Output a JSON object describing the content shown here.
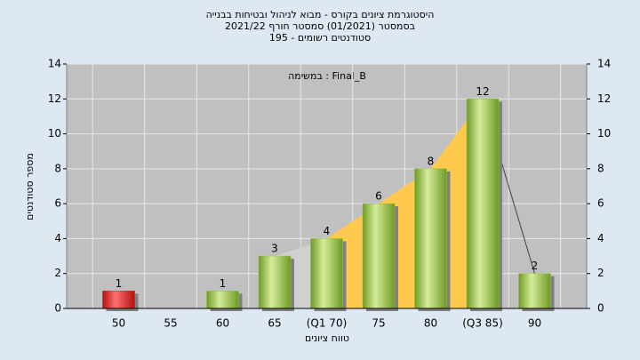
{
  "chart_data": {
    "type": "bar",
    "title": "היסטוגרמת ציונים בקורס - מבוא לניהול ובטיחות בבנייה",
    "subtitle": "בסמסטר  (01/2021)  סמסטר חורף  2021/22",
    "subtitle2": "סטודנטים רשומים - 195",
    "annotation": "במשימה : Final_B",
    "x_label": "טווח ציונים",
    "y_label": "מספר סטודנטים",
    "categories": [
      "50",
      "55",
      "60",
      "65",
      "(Q1 70)",
      "75",
      "80",
      "(Q3 85)",
      "90"
    ],
    "values": [
      1,
      0,
      1,
      3,
      4,
      6,
      8,
      12,
      2
    ],
    "colors": [
      "#d42020",
      "#8fc43a",
      "#8fc43a",
      "#8fc43a",
      "#8fc43a",
      "#8fc43a",
      "#8fc43a",
      "#8fc43a",
      "#8fc43a"
    ],
    "ylim": [
      0,
      14
    ],
    "yticks": [
      0,
      2,
      4,
      6,
      8,
      10,
      12,
      14
    ],
    "grid": true
  }
}
